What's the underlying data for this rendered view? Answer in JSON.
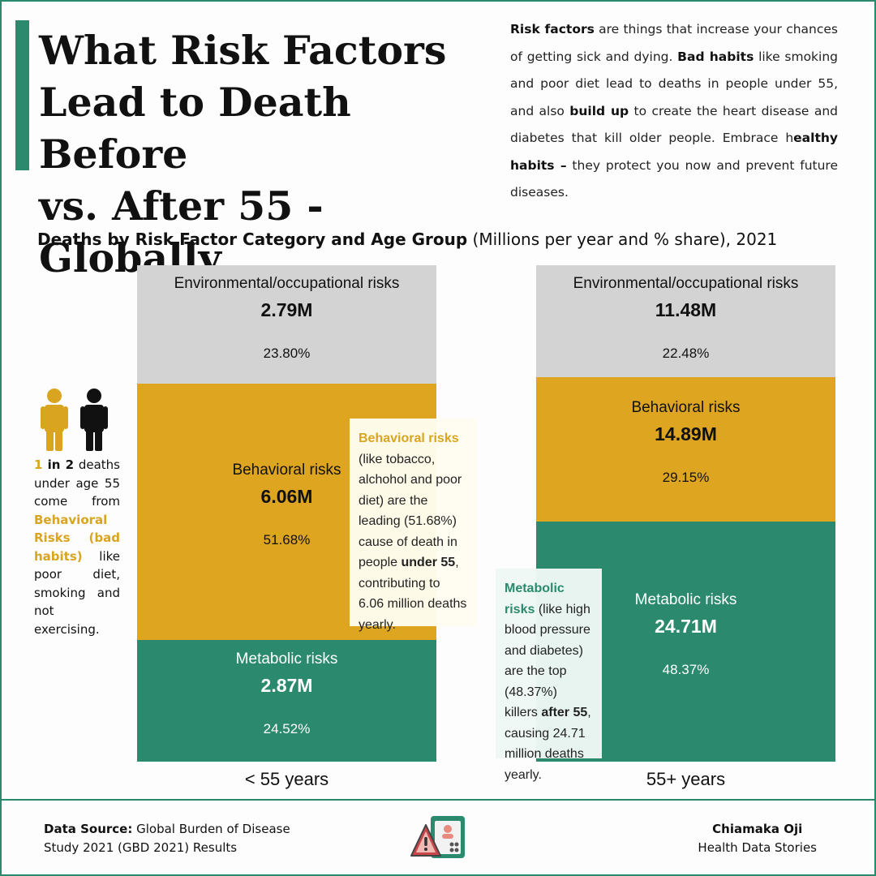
{
  "header": {
    "title_line1": "What Risk Factors",
    "title_line2": "Lead to Death Before",
    "title_line3": "vs. After 55 - Globally"
  },
  "intro": {
    "p1_bold": "Risk factors",
    "p1_text": " are things that increase your chances of getting sick and dying. ",
    "p2_bold": "Bad habits",
    "p2_text": " like smoking and poor diet lead to deaths in people under 55, and also ",
    "p3_bold": "build up",
    "p3_text": " to create the heart disease and diabetes that kill older people. Embrace h",
    "p4_bold": "ealthy habits –",
    "p4_text": " they protect you now and prevent future diseases."
  },
  "chart_heading": {
    "bold": "Deaths by Risk Factor Category and Age Group",
    "rest": " (Millions per year and % share), 2021"
  },
  "colors": {
    "environmental": "#d3d3d3",
    "behavioral": "#dda520",
    "metabolic": "#2b8a6e",
    "accent": "#2b8a6e",
    "highlight": "#d9a520"
  },
  "chart_data": {
    "type": "bar",
    "stacked": true,
    "normalized": true,
    "title": "Deaths by Risk Factor Category and Age Group (Millions per year and % share), 2021",
    "categories": [
      "< 55 years",
      "55+ years"
    ],
    "series": [
      {
        "name": "Metabolic risks",
        "color": "#2b8a6e",
        "values_millions": [
          "2.87M",
          "24.71M"
        ],
        "values": [
          2.87,
          24.71
        ],
        "share_labels": [
          "24.52%",
          "48.37%"
        ],
        "shares": [
          24.52,
          48.37
        ]
      },
      {
        "name": "Behavioral risks",
        "color": "#dda520",
        "values_millions": [
          "6.06M",
          "14.89M"
        ],
        "values": [
          6.06,
          14.89
        ],
        "share_labels": [
          "51.68%",
          "29.15%"
        ],
        "shares": [
          51.68,
          29.15
        ]
      },
      {
        "name": "Environmental/occupational risks",
        "color": "#d3d3d3",
        "values_millions": [
          "2.79M",
          "11.48M"
        ],
        "values": [
          2.79,
          11.48
        ],
        "share_labels": [
          "23.80%",
          "22.48%"
        ],
        "shares": [
          23.8,
          22.48
        ]
      }
    ],
    "ylim": [
      0,
      100
    ]
  },
  "left_note": {
    "num": "1",
    "t1": " in 2",
    "t2": " deaths under age 55 come from ",
    "y1": "Behavioral Risks (bad habits)",
    "t3": " like poor diet, smoking and not exercising."
  },
  "callout_behavioral": {
    "hl": "Behavioral risks",
    "t1": " (like tobacco, alchohol and poor diet) are the leading (51.68%) cause of death in people ",
    "b1": "under 55",
    "t2": ", contributing to 6.06 million deaths yearly."
  },
  "callout_metabolic": {
    "hl": "Metabolic risks",
    "t1": " (like high blood pressure and diabetes) are the top (48.37%) killers ",
    "b1": "after 55",
    "t2": ", causing 24.71 million deaths yearly."
  },
  "footer": {
    "source_bold": "Data Source:",
    "source_text1": " Global Burden of Disease",
    "source_text2": "Study 2021 (GBD 2021) Results",
    "author_name": "Chiamaka Oji",
    "author_sub": "Health Data Stories",
    "icon": "risk-warning-clipboard-icon"
  }
}
